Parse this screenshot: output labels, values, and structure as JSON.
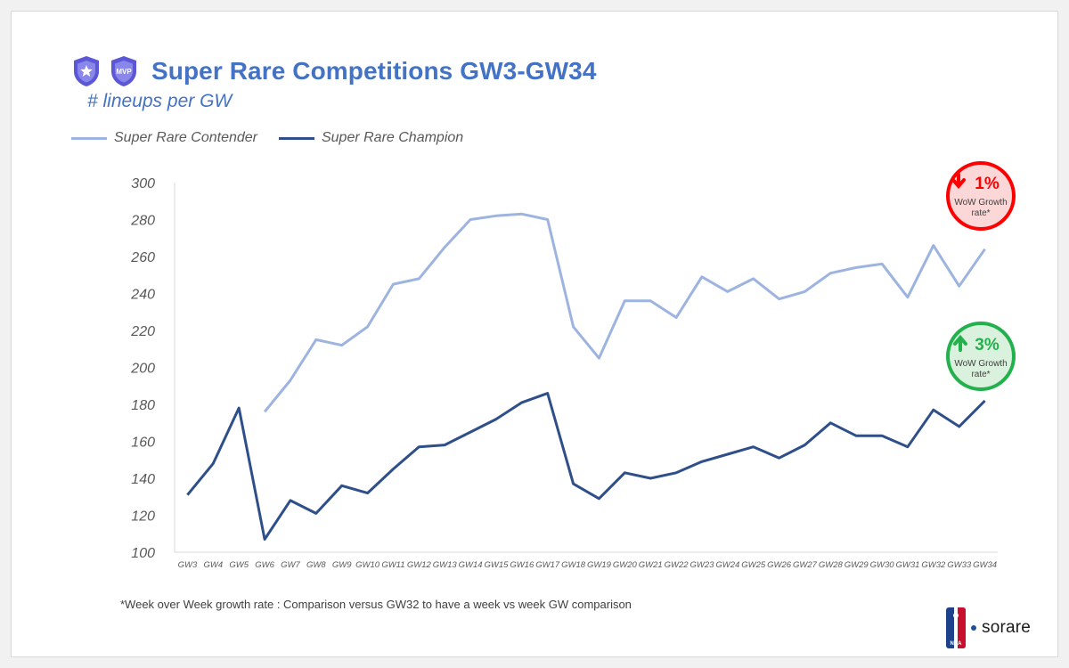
{
  "header": {
    "title": "Super Rare Competitions GW3-GW34",
    "subtitle": "# lineups per GW",
    "badge_left_icon": "shield-star-icon",
    "badge_right_icon": "shield-mvp-icon",
    "badge_right_text": "MVP"
  },
  "footnote": "*Week over Week growth rate : Comparison versus GW32 to have a week vs week GW comparison",
  "logo": {
    "brand": "sorare",
    "league": "NBA",
    "league_icon": "nba-logo-icon"
  },
  "colors": {
    "contender": "#9db4e0",
    "champion": "#2f4f8a",
    "title": "#4472c4",
    "down": "#ff0000",
    "up": "#22b14c"
  },
  "callouts": {
    "contender": {
      "arrow": "down",
      "value": "1%",
      "label_line1": "WoW Growth",
      "label_line2": "rate*"
    },
    "champion": {
      "arrow": "up",
      "value": "3%",
      "label_line1": "WoW Growth",
      "label_line2": "rate*"
    }
  },
  "chart_data": {
    "type": "line",
    "title": "Super Rare Competitions GW3-GW34",
    "subtitle": "# lineups per GW",
    "xlabel": "",
    "ylabel": "",
    "ylim": [
      100,
      300
    ],
    "yticks": [
      100,
      120,
      140,
      160,
      180,
      200,
      220,
      240,
      260,
      280,
      300
    ],
    "categories": [
      "GW3",
      "GW4",
      "GW5",
      "GW6",
      "GW7",
      "GW8",
      "GW9",
      "GW10",
      "GW11",
      "GW12",
      "GW13",
      "GW14",
      "GW15",
      "GW16",
      "GW17",
      "GW18",
      "GW19",
      "GW20",
      "GW21",
      "GW22",
      "GW23",
      "GW24",
      "GW25",
      "GW26",
      "GW27",
      "GW28",
      "GW29",
      "GW30",
      "GW31",
      "GW32",
      "GW33",
      "GW34"
    ],
    "legend_position": "top-left",
    "series": [
      {
        "name": "Super Rare Contender",
        "values": [
          null,
          null,
          null,
          176,
          193,
          215,
          212,
          222,
          245,
          248,
          265,
          280,
          282,
          283,
          280,
          222,
          205,
          236,
          236,
          227,
          249,
          241,
          248,
          237,
          241,
          251,
          254,
          256,
          238,
          266,
          244,
          264
        ]
      },
      {
        "name": "Super Rare Champion",
        "values": [
          131,
          148,
          178,
          107,
          128,
          121,
          136,
          132,
          145,
          157,
          158,
          165,
          172,
          181,
          186,
          137,
          129,
          143,
          140,
          143,
          149,
          153,
          157,
          151,
          158,
          170,
          163,
          163,
          157,
          177,
          168,
          182
        ]
      }
    ]
  }
}
